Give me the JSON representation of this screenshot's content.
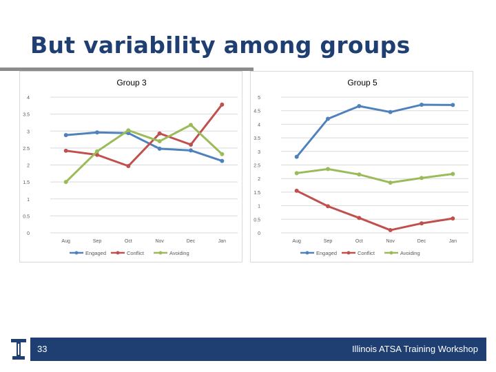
{
  "slide": {
    "title": "But variability among groups",
    "page_number": "33",
    "footer": "Illinois ATSA Training Workshop"
  },
  "colors": {
    "title": "#1f3f73",
    "footer_bar": "#1f3f73",
    "Engaged": "#4f81bd",
    "Conflict": "#c0504d",
    "Avoiding": "#9bbb59",
    "gridline": "#d9d9d9",
    "axis_text": "#595959"
  },
  "chart_data": [
    {
      "type": "line",
      "title": "Group 3",
      "categories": [
        "Aug",
        "Sep",
        "Oct",
        "Nov",
        "Dec",
        "Jan"
      ],
      "ylim": [
        0,
        4
      ],
      "yticks": [
        "0",
        "0.5",
        "1",
        "1.5",
        "2",
        "2.5",
        "3",
        "3.5",
        "4"
      ],
      "grid": true,
      "legend": "bottom",
      "series": [
        {
          "name": "Engaged",
          "values": [
            2.88,
            2.96,
            2.94,
            2.48,
            2.43,
            2.12
          ]
        },
        {
          "name": "Conflict",
          "values": [
            2.42,
            2.3,
            1.97,
            2.93,
            2.6,
            3.78
          ]
        },
        {
          "name": "Avoiding",
          "values": [
            1.5,
            2.4,
            3.02,
            2.7,
            3.18,
            2.32
          ]
        }
      ]
    },
    {
      "type": "line",
      "title": "Group 5",
      "categories": [
        "Aug",
        "Sep",
        "Oct",
        "Nov",
        "Dec",
        "Jan"
      ],
      "ylim": [
        0,
        5
      ],
      "yticks": [
        "0",
        "0.5",
        "1",
        "1.5",
        "2",
        "2.5",
        "3",
        "3.5",
        "4",
        "4.5",
        "5"
      ],
      "grid": true,
      "legend": "bottom",
      "series": [
        {
          "name": "Engaged",
          "values": [
            2.8,
            4.2,
            4.67,
            4.45,
            4.72,
            4.71
          ]
        },
        {
          "name": "Conflict",
          "values": [
            1.55,
            0.98,
            0.55,
            0.1,
            0.35,
            0.53
          ]
        },
        {
          "name": "Avoiding",
          "values": [
            2.2,
            2.35,
            2.15,
            1.85,
            2.02,
            2.17
          ]
        }
      ]
    }
  ]
}
